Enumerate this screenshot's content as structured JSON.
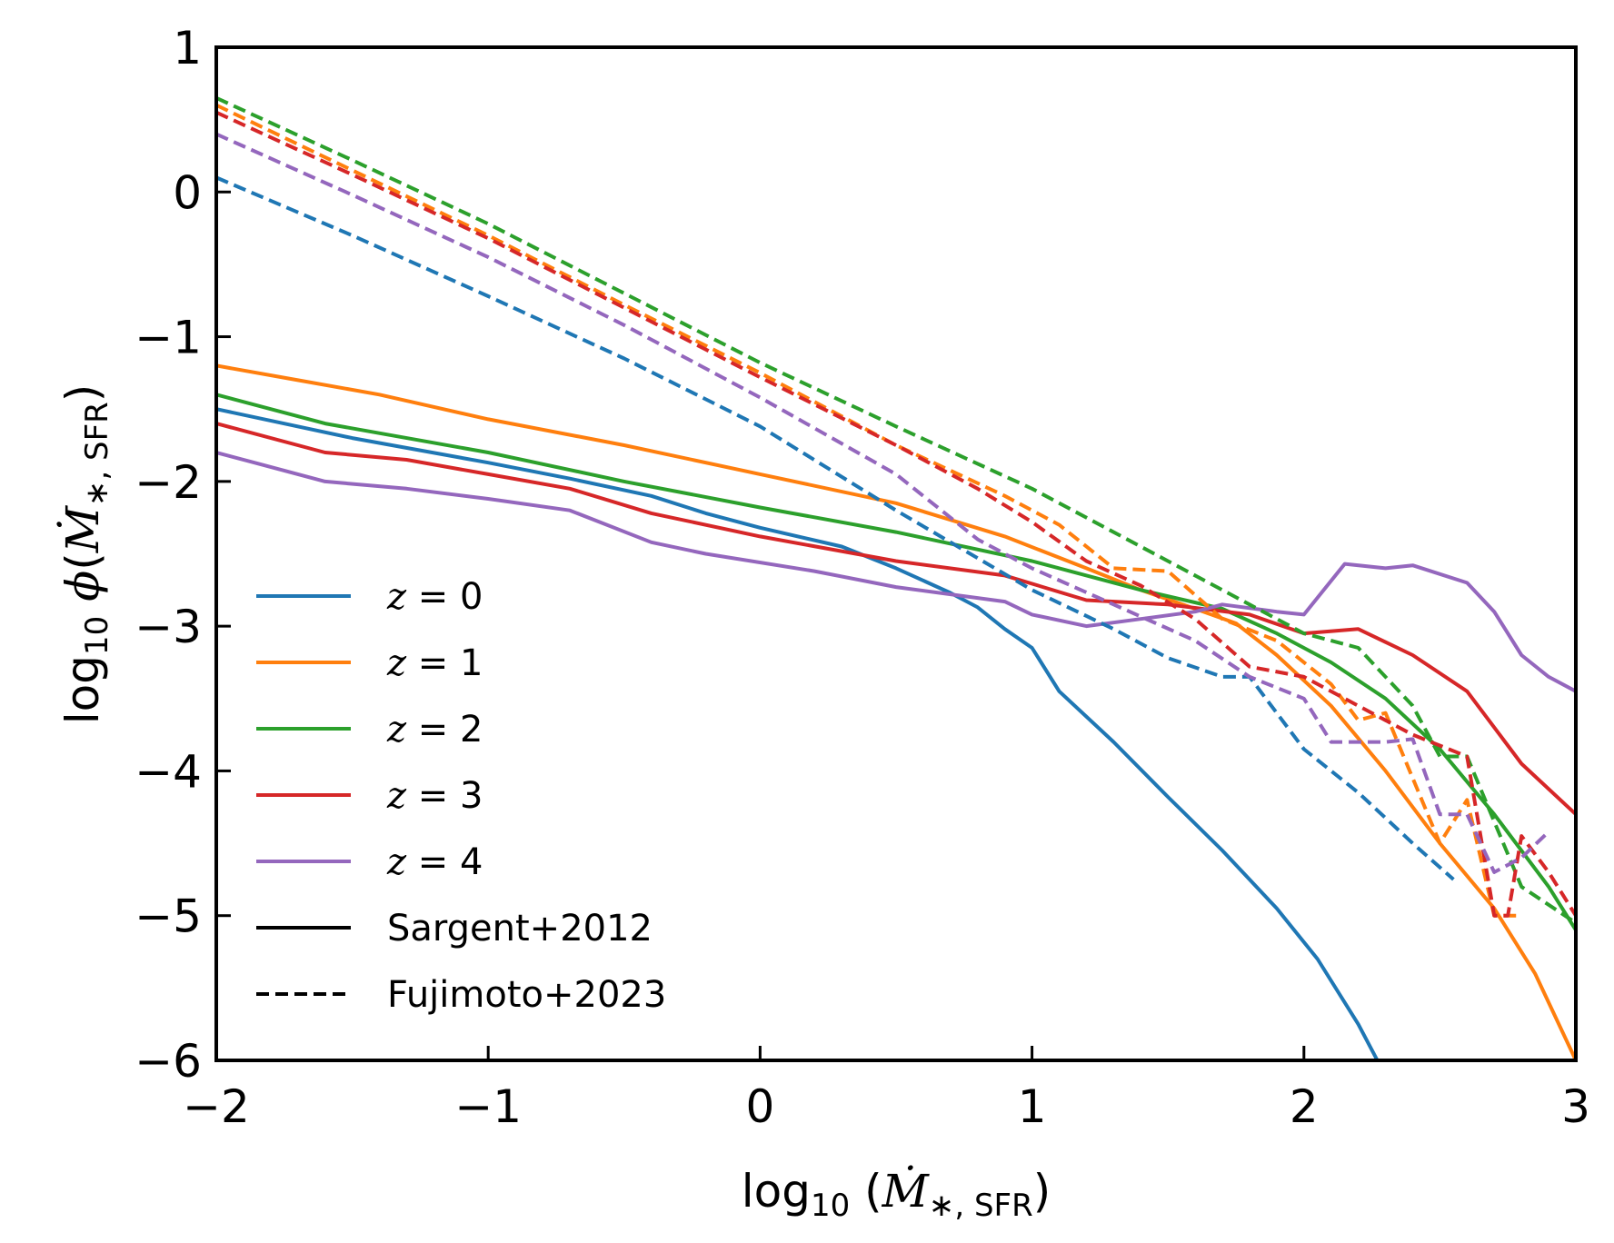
{
  "chart_data": {
    "type": "line",
    "title": "",
    "xlabel": "log10 (Ṁ*,SFR)",
    "ylabel": "log10 φ(Ṁ*,SFR)",
    "xlim": [
      -2,
      3
    ],
    "ylim": [
      -6,
      1
    ],
    "xticks": [
      "−2",
      "−1",
      "0",
      "1",
      "2",
      "3"
    ],
    "yticks": [
      "1",
      "0",
      "−1",
      "−2",
      "−3",
      "−4",
      "−5",
      "−6"
    ],
    "grid": false,
    "legend_position": "lower-left",
    "legend": [
      {
        "label_var": "z",
        "label_eq": " = ",
        "label_val": "0",
        "color": "#1f77b4",
        "style": "solid"
      },
      {
        "label_var": "z",
        "label_eq": " = ",
        "label_val": "1",
        "color": "#ff7f0e",
        "style": "solid"
      },
      {
        "label_var": "z",
        "label_eq": " = ",
        "label_val": "2",
        "color": "#2ca02c",
        "style": "solid"
      },
      {
        "label_var": "z",
        "label_eq": " = ",
        "label_val": "3",
        "color": "#d62728",
        "style": "solid"
      },
      {
        "label_var": "z",
        "label_eq": " = ",
        "label_val": "4",
        "color": "#9467bd",
        "style": "solid"
      },
      {
        "label": "Sargent+2012",
        "color": "#000000",
        "style": "solid"
      },
      {
        "label": "Fujimoto+2023",
        "color": "#000000",
        "style": "dashed"
      }
    ],
    "series": [
      {
        "name": "z = 0",
        "model": "Sargent+2012",
        "color": "#1f77b4",
        "style": "solid",
        "points": [
          [
            -2,
            -1.5
          ],
          [
            -1.5,
            -1.7
          ],
          [
            -1,
            -1.87
          ],
          [
            -0.7,
            -1.98
          ],
          [
            -0.4,
            -2.1
          ],
          [
            -0.2,
            -2.22
          ],
          [
            0,
            -2.32
          ],
          [
            0.3,
            -2.45
          ],
          [
            0.5,
            -2.6
          ],
          [
            0.7,
            -2.77
          ],
          [
            0.8,
            -2.87
          ],
          [
            0.9,
            -3.02
          ],
          [
            1,
            -3.15
          ],
          [
            1.1,
            -3.45
          ],
          [
            1.3,
            -3.8
          ],
          [
            1.5,
            -4.18
          ],
          [
            1.7,
            -4.55
          ],
          [
            1.9,
            -4.95
          ],
          [
            2.05,
            -5.3
          ],
          [
            2.2,
            -5.75
          ],
          [
            2.27,
            -6.0
          ]
        ]
      },
      {
        "name": "z = 1",
        "model": "Sargent+2012",
        "color": "#ff7f0e",
        "style": "solid",
        "points": [
          [
            -2,
            -1.2
          ],
          [
            -1.7,
            -1.3
          ],
          [
            -1.4,
            -1.4
          ],
          [
            -1,
            -1.57
          ],
          [
            -0.5,
            -1.75
          ],
          [
            0,
            -1.95
          ],
          [
            0.5,
            -2.15
          ],
          [
            0.9,
            -2.38
          ],
          [
            1.2,
            -2.6
          ],
          [
            1.4,
            -2.75
          ],
          [
            1.6,
            -2.88
          ],
          [
            1.75,
            -2.98
          ],
          [
            1.9,
            -3.2
          ],
          [
            2.1,
            -3.55
          ],
          [
            2.3,
            -4.0
          ],
          [
            2.5,
            -4.5
          ],
          [
            2.7,
            -4.95
          ],
          [
            2.85,
            -5.4
          ],
          [
            3,
            -6.0
          ]
        ]
      },
      {
        "name": "z = 2",
        "model": "Sargent+2012",
        "color": "#2ca02c",
        "style": "solid",
        "points": [
          [
            -2,
            -1.4
          ],
          [
            -1.6,
            -1.6
          ],
          [
            -1,
            -1.8
          ],
          [
            -0.5,
            -2.0
          ],
          [
            0,
            -2.18
          ],
          [
            0.5,
            -2.35
          ],
          [
            1,
            -2.55
          ],
          [
            1.4,
            -2.75
          ],
          [
            1.7,
            -2.88
          ],
          [
            1.9,
            -3.05
          ],
          [
            2.1,
            -3.25
          ],
          [
            2.3,
            -3.5
          ],
          [
            2.5,
            -3.85
          ],
          [
            2.7,
            -4.3
          ],
          [
            2.9,
            -4.8
          ],
          [
            3,
            -5.1
          ]
        ]
      },
      {
        "name": "z = 3",
        "model": "Sargent+2012",
        "color": "#d62728",
        "style": "solid",
        "points": [
          [
            -2,
            -1.6
          ],
          [
            -1.6,
            -1.8
          ],
          [
            -1.3,
            -1.85
          ],
          [
            -1,
            -1.95
          ],
          [
            -0.7,
            -2.05
          ],
          [
            -0.4,
            -2.22
          ],
          [
            0,
            -2.38
          ],
          [
            0.5,
            -2.55
          ],
          [
            0.9,
            -2.65
          ],
          [
            1.2,
            -2.82
          ],
          [
            1.5,
            -2.85
          ],
          [
            1.8,
            -2.92
          ],
          [
            2,
            -3.05
          ],
          [
            2.2,
            -3.02
          ],
          [
            2.4,
            -3.2
          ],
          [
            2.6,
            -3.45
          ],
          [
            2.8,
            -3.95
          ],
          [
            3,
            -4.3
          ]
        ]
      },
      {
        "name": "z = 4",
        "model": "Sargent+2012",
        "color": "#9467bd",
        "style": "solid",
        "points": [
          [
            -2,
            -1.8
          ],
          [
            -1.6,
            -2.0
          ],
          [
            -1.3,
            -2.05
          ],
          [
            -1,
            -2.12
          ],
          [
            -0.7,
            -2.2
          ],
          [
            -0.4,
            -2.42
          ],
          [
            -0.2,
            -2.5
          ],
          [
            0.2,
            -2.62
          ],
          [
            0.5,
            -2.73
          ],
          [
            0.9,
            -2.83
          ],
          [
            1.0,
            -2.92
          ],
          [
            1.2,
            -3.0
          ],
          [
            1.4,
            -2.95
          ],
          [
            1.6,
            -2.9
          ],
          [
            1.7,
            -2.85
          ],
          [
            1.9,
            -2.9
          ],
          [
            2.0,
            -2.92
          ],
          [
            2.15,
            -2.57
          ],
          [
            2.3,
            -2.6
          ],
          [
            2.4,
            -2.58
          ],
          [
            2.6,
            -2.7
          ],
          [
            2.7,
            -2.9
          ],
          [
            2.8,
            -3.2
          ],
          [
            2.9,
            -3.35
          ],
          [
            3,
            -3.45
          ]
        ]
      },
      {
        "name": "z = 0",
        "model": "Fujimoto+2023",
        "color": "#1f77b4",
        "style": "dashed",
        "points": [
          [
            -2,
            0.1
          ],
          [
            -1.5,
            -0.3
          ],
          [
            -1,
            -0.72
          ],
          [
            -0.5,
            -1.15
          ],
          [
            0,
            -1.62
          ],
          [
            0.5,
            -2.2
          ],
          [
            1,
            -2.75
          ],
          [
            1.3,
            -3.02
          ],
          [
            1.5,
            -3.22
          ],
          [
            1.7,
            -3.35
          ],
          [
            1.8,
            -3.35
          ],
          [
            2,
            -3.85
          ],
          [
            2.2,
            -4.15
          ],
          [
            2.4,
            -4.5
          ],
          [
            2.55,
            -4.75
          ]
        ]
      },
      {
        "name": "z = 1",
        "model": "Fujimoto+2023",
        "color": "#ff7f0e",
        "style": "dashed",
        "points": [
          [
            -2,
            0.6
          ],
          [
            -1.5,
            0.15
          ],
          [
            -1,
            -0.3
          ],
          [
            -0.5,
            -0.78
          ],
          [
            0,
            -1.25
          ],
          [
            0.5,
            -1.75
          ],
          [
            0.9,
            -2.1
          ],
          [
            1.1,
            -2.3
          ],
          [
            1.3,
            -2.6
          ],
          [
            1.5,
            -2.62
          ],
          [
            1.7,
            -2.95
          ],
          [
            1.9,
            -3.1
          ],
          [
            2.1,
            -3.4
          ],
          [
            2.2,
            -3.65
          ],
          [
            2.3,
            -3.6
          ],
          [
            2.5,
            -4.5
          ],
          [
            2.6,
            -4.2
          ],
          [
            2.7,
            -5.0
          ],
          [
            2.8,
            -5.0
          ]
        ]
      },
      {
        "name": "z = 2",
        "model": "Fujimoto+2023",
        "color": "#2ca02c",
        "style": "dashed",
        "points": [
          [
            -2,
            0.65
          ],
          [
            -1.5,
            0.22
          ],
          [
            -1,
            -0.22
          ],
          [
            -0.5,
            -0.7
          ],
          [
            0,
            -1.18
          ],
          [
            0.5,
            -1.62
          ],
          [
            1,
            -2.05
          ],
          [
            1.5,
            -2.55
          ],
          [
            1.8,
            -2.85
          ],
          [
            2,
            -3.05
          ],
          [
            2.2,
            -3.15
          ],
          [
            2.4,
            -3.55
          ],
          [
            2.5,
            -3.9
          ],
          [
            2.6,
            -3.9
          ],
          [
            2.7,
            -4.35
          ],
          [
            2.8,
            -4.8
          ],
          [
            3,
            -5.05
          ]
        ]
      },
      {
        "name": "z = 3",
        "model": "Fujimoto+2023",
        "color": "#d62728",
        "style": "dashed",
        "points": [
          [
            -2,
            0.55
          ],
          [
            -1.5,
            0.12
          ],
          [
            -1,
            -0.32
          ],
          [
            -0.5,
            -0.8
          ],
          [
            0,
            -1.28
          ],
          [
            0.5,
            -1.75
          ],
          [
            0.8,
            -2.05
          ],
          [
            1,
            -2.28
          ],
          [
            1.2,
            -2.55
          ],
          [
            1.4,
            -2.72
          ],
          [
            1.6,
            -2.95
          ],
          [
            1.8,
            -3.28
          ],
          [
            2,
            -3.35
          ],
          [
            2.2,
            -3.55
          ],
          [
            2.4,
            -3.75
          ],
          [
            2.6,
            -3.9
          ],
          [
            2.7,
            -5.0
          ],
          [
            2.75,
            -5.0
          ],
          [
            2.8,
            -4.45
          ],
          [
            2.9,
            -4.7
          ],
          [
            3,
            -5.0
          ]
        ]
      },
      {
        "name": "z = 4",
        "model": "Fujimoto+2023",
        "color": "#9467bd",
        "style": "dashed",
        "points": [
          [
            -2,
            0.4
          ],
          [
            -1.5,
            -0.02
          ],
          [
            -1,
            -0.45
          ],
          [
            -0.5,
            -0.92
          ],
          [
            0,
            -1.42
          ],
          [
            0.5,
            -1.95
          ],
          [
            0.8,
            -2.4
          ],
          [
            1,
            -2.6
          ],
          [
            1.3,
            -2.85
          ],
          [
            1.6,
            -3.1
          ],
          [
            1.8,
            -3.35
          ],
          [
            2,
            -3.5
          ],
          [
            2.1,
            -3.8
          ],
          [
            2.3,
            -3.8
          ],
          [
            2.4,
            -3.78
          ],
          [
            2.5,
            -4.3
          ],
          [
            2.6,
            -4.3
          ],
          [
            2.7,
            -4.7
          ],
          [
            2.8,
            -4.6
          ],
          [
            2.9,
            -4.42
          ]
        ]
      }
    ]
  }
}
